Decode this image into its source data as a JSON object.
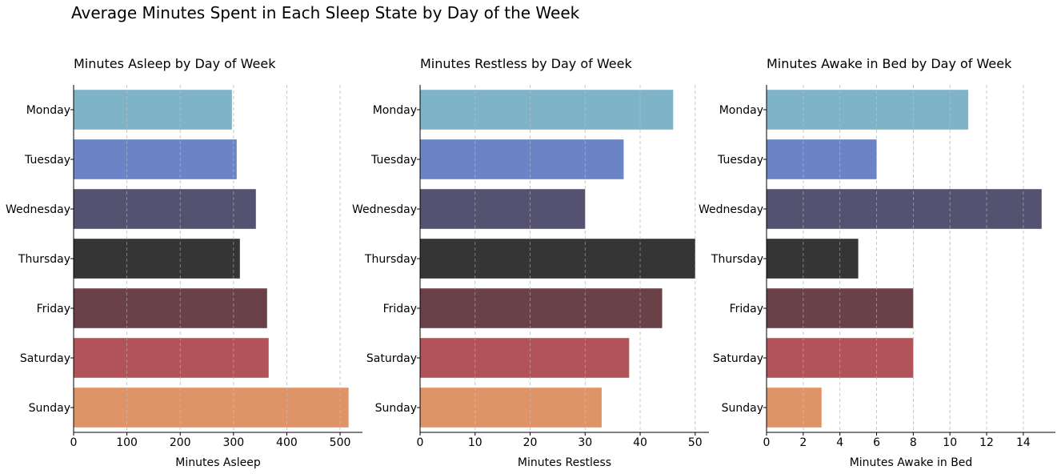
{
  "figure_title": "Average Minutes Spent in Each Sleep State by Day of the Week",
  "colors": [
    "#7fb3c8",
    "#6a84c5",
    "#545270",
    "#353535",
    "#6b4148",
    "#b25359",
    "#df9468"
  ],
  "chart_data": [
    {
      "type": "bar",
      "orientation": "horizontal",
      "title": "Minutes Asleep by Day of Week",
      "xlabel": "Minutes Asleep",
      "ylabel": "",
      "categories": [
        "Monday",
        "Tuesday",
        "Wednesday",
        "Thursday",
        "Friday",
        "Saturday",
        "Sunday"
      ],
      "values": [
        297,
        306,
        342,
        312,
        363,
        366,
        516
      ],
      "xlim": [
        0,
        542
      ],
      "xticks": [
        0,
        100,
        200,
        300,
        400,
        500
      ],
      "grid": "x-dashed",
      "legend": "none"
    },
    {
      "type": "bar",
      "orientation": "horizontal",
      "title": "Minutes Restless by Day of Week",
      "xlabel": "Minutes Restless",
      "ylabel": "",
      "categories": [
        "Monday",
        "Tuesday",
        "Wednesday",
        "Thursday",
        "Friday",
        "Saturday",
        "Sunday"
      ],
      "values": [
        46,
        37,
        30,
        50,
        44,
        38,
        33
      ],
      "xlim": [
        0,
        52.5
      ],
      "xticks": [
        0,
        10,
        20,
        30,
        40,
        50
      ],
      "grid": "x-dashed",
      "legend": "none"
    },
    {
      "type": "bar",
      "orientation": "horizontal",
      "title": "Minutes Awake in Bed by Day of Week",
      "xlabel": "Minutes Awake in Bed",
      "ylabel": "",
      "categories": [
        "Monday",
        "Tuesday",
        "Wednesday",
        "Thursday",
        "Friday",
        "Saturday",
        "Sunday"
      ],
      "values": [
        11,
        6,
        15,
        5,
        8,
        8,
        3
      ],
      "xlim": [
        0,
        15.75
      ],
      "xticks": [
        0,
        2,
        4,
        6,
        8,
        10,
        12,
        14
      ],
      "grid": "x-dashed",
      "legend": "none"
    }
  ]
}
